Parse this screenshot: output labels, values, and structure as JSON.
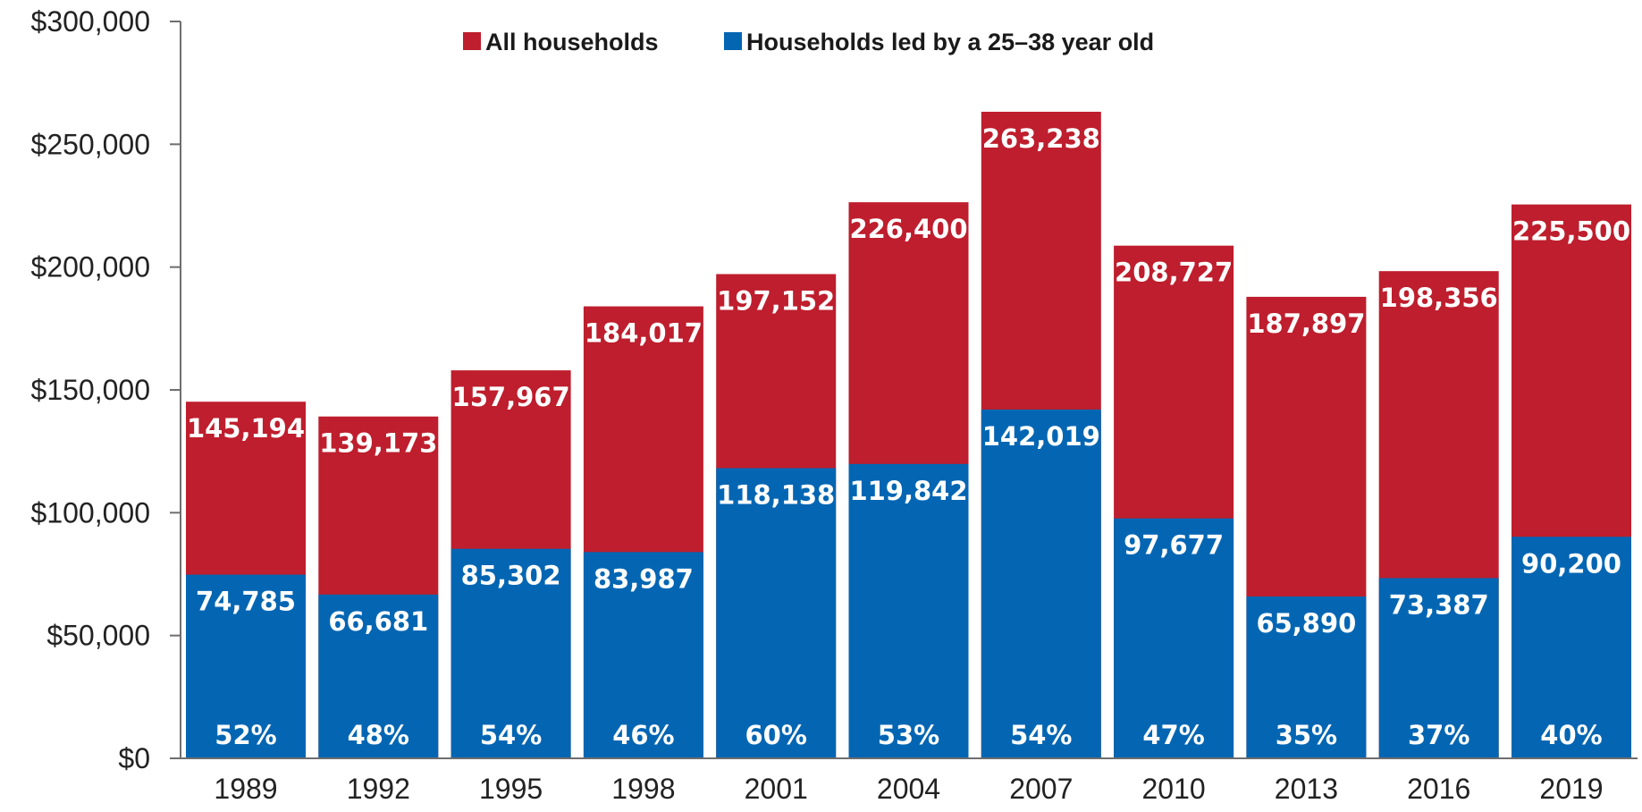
{
  "colors": {
    "all_households": "#be1e2d",
    "young_households": "#0466b3",
    "axis": "#6e6e6e"
  },
  "legend": {
    "items": [
      {
        "label": "All households",
        "color": "#be1e2d"
      },
      {
        "label": "Households led by a 25–38 year old",
        "color": "#0466b3"
      }
    ],
    "placement": "top-center"
  },
  "y_tick_labels": [
    "$0",
    "$50,000",
    "$100,000",
    "$150,000",
    "$200,000",
    "$250,000",
    "$300,000"
  ],
  "chart_data": {
    "type": "bar",
    "categories": [
      "1989",
      "1992",
      "1995",
      "1998",
      "2001",
      "2004",
      "2007",
      "2010",
      "2013",
      "2016",
      "2019"
    ],
    "series": [
      {
        "name": "All households",
        "values": [
          145194,
          139173,
          157967,
          184017,
          197152,
          226400,
          263238,
          208727,
          187897,
          198356,
          225500
        ],
        "labels": [
          "145,194",
          "139,173",
          "157,967",
          "184,017",
          "197,152",
          "226,400",
          "263,238",
          "208,727",
          "187,897",
          "198,356",
          "225,500"
        ]
      },
      {
        "name": "Households led by a 25–38 year old",
        "values": [
          74785,
          66681,
          85302,
          83987,
          118138,
          119842,
          142019,
          97677,
          65890,
          73387,
          90200
        ],
        "labels": [
          "74,785",
          "66,681",
          "85,302",
          "83,987",
          "118,138",
          "119,842",
          "142,019",
          "97,677",
          "65,890",
          "73,387",
          "90,200"
        ]
      }
    ],
    "percent_labels": [
      "52%",
      "48%",
      "54%",
      "46%",
      "60%",
      "53%",
      "54%",
      "47%",
      "35%",
      "37%",
      "40%"
    ],
    "ylim": [
      0,
      300000
    ],
    "y_ticks": [
      0,
      50000,
      100000,
      150000,
      200000,
      250000,
      300000
    ],
    "grid": false,
    "overlapping_bars": true
  }
}
